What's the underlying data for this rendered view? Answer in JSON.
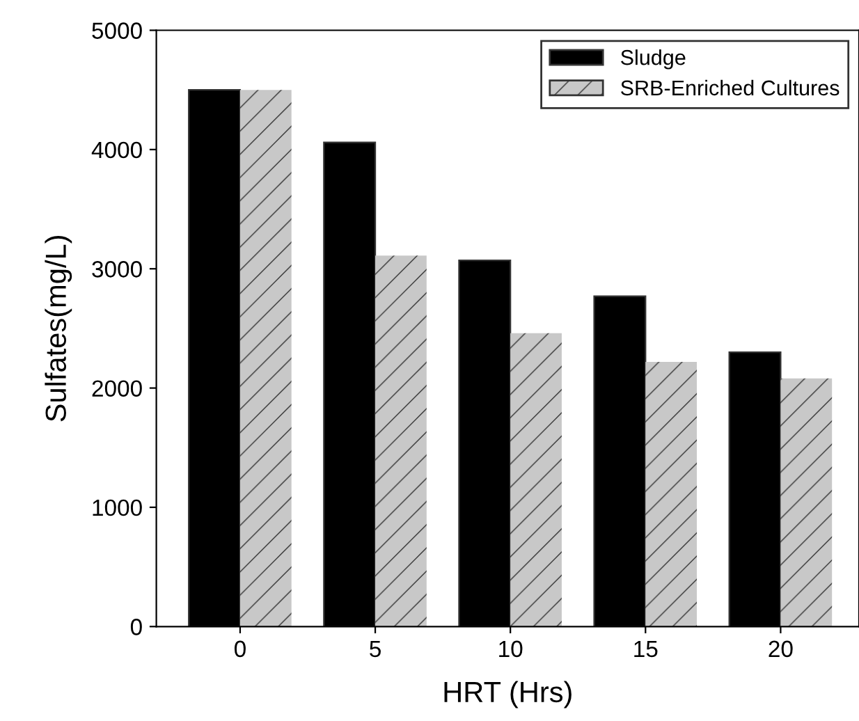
{
  "chart_data": {
    "type": "bar",
    "xlabel": "HRT (Hrs)",
    "ylabel": "Sulfates(mg/L)",
    "categories": [
      "0",
      "5",
      "10",
      "15",
      "20"
    ],
    "series": [
      {
        "name": "Sludge",
        "color": "#000000",
        "values": [
          4500,
          4060,
          3070,
          2770,
          2300
        ]
      },
      {
        "name": "SRB-Enriched Cultures",
        "color": "#c8c8c8",
        "values": [
          4500,
          3110,
          2460,
          2220,
          2080
        ]
      }
    ],
    "ylim": [
      0,
      5000
    ],
    "yticks": [
      0,
      1000,
      2000,
      3000,
      4000,
      5000
    ],
    "grid": false,
    "legend": "top right"
  }
}
